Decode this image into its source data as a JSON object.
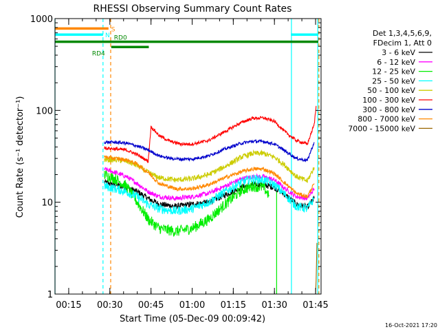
{
  "chart_data": {
    "type": "line",
    "title": "RHESSI Observing Summary Count Rates",
    "xlabel": "Start Time (05-Dec-09 00:09:42)",
    "ylabel": "Count Rate (s⁻¹ detector⁻¹)",
    "ylog": true,
    "ylim": [
      1,
      1000
    ],
    "xlim_minutes": [
      10,
      107
    ],
    "y_ticks": [
      {
        "value": 1,
        "label": "1"
      },
      {
        "value": 10,
        "label": "10"
      },
      {
        "value": 100,
        "label": "100"
      },
      {
        "value": 1000,
        "label": "1000"
      }
    ],
    "x_ticks": [
      {
        "minutes": 15,
        "label": "00:15"
      },
      {
        "minutes": 30,
        "label": "00:30"
      },
      {
        "minutes": 45,
        "label": "00:45"
      },
      {
        "minutes": 60,
        "label": "01:00"
      },
      {
        "minutes": 75,
        "label": "01:15"
      },
      {
        "minutes": 90,
        "label": "01:30"
      },
      {
        "minutes": 105,
        "label": "01:45"
      }
    ],
    "legend_header": [
      "Det 1,3,4,5,6,9,",
      "FDecim 1, Att 0"
    ],
    "legend_position": "right",
    "timestamp": "16-Oct-2021 17:20",
    "series": [
      {
        "name": "3 - 6 keV",
        "color": "#000000",
        "noise": 1.08,
        "points": [
          [
            28,
            16.5
          ],
          [
            32,
            15.5
          ],
          [
            36,
            14.5
          ],
          [
            40,
            13
          ],
          [
            44,
            11
          ],
          [
            48,
            9.5
          ],
          [
            54,
            9.0
          ],
          [
            60,
            9.5
          ],
          [
            66,
            10
          ],
          [
            72,
            12
          ],
          [
            78,
            14.5
          ],
          [
            82,
            15.5
          ],
          [
            86,
            15.5
          ],
          [
            90,
            14.5
          ],
          [
            94,
            12
          ],
          [
            98,
            9.5
          ],
          [
            102,
            8.8
          ],
          [
            104.5,
            11
          ]
        ]
      },
      {
        "name": "6 - 12 keV",
        "color": "#ff00ff",
        "noise": 1.06,
        "points": [
          [
            28,
            23
          ],
          [
            32,
            21
          ],
          [
            36,
            19
          ],
          [
            40,
            16
          ],
          [
            44,
            13
          ],
          [
            48,
            11.5
          ],
          [
            54,
            11
          ],
          [
            60,
            11.5
          ],
          [
            66,
            12.5
          ],
          [
            72,
            15
          ],
          [
            78,
            18
          ],
          [
            82,
            19
          ],
          [
            86,
            19
          ],
          [
            90,
            17.5
          ],
          [
            94,
            14
          ],
          [
            98,
            11.5
          ],
          [
            102,
            11
          ],
          [
            104.5,
            14
          ]
        ]
      },
      {
        "name": "12 - 25 keV",
        "color": "#00ee00",
        "noise": 1.15,
        "points": [
          [
            28,
            20
          ],
          [
            32,
            18
          ],
          [
            36,
            15
          ],
          [
            40,
            10
          ],
          [
            44,
            6.5
          ],
          [
            48,
            5.2
          ],
          [
            54,
            4.8
          ],
          [
            60,
            5.2
          ],
          [
            66,
            6.5
          ],
          [
            72,
            9.5
          ],
          [
            78,
            13.5
          ],
          [
            82,
            15
          ],
          [
            86,
            14.5
          ],
          [
            88,
            12
          ]
        ]
      },
      {
        "name": "25 - 50 keV",
        "color": "#00ffff",
        "noise": 1.12,
        "points": [
          [
            28,
            15
          ],
          [
            32,
            14
          ],
          [
            36,
            13
          ],
          [
            40,
            11.5
          ],
          [
            44,
            9.5
          ],
          [
            48,
            8.5
          ],
          [
            54,
            8
          ],
          [
            60,
            8.5
          ],
          [
            66,
            10
          ],
          [
            72,
            13
          ],
          [
            78,
            16.5
          ],
          [
            82,
            18
          ],
          [
            86,
            17.5
          ],
          [
            90,
            15.5
          ],
          [
            94,
            12
          ],
          [
            98,
            9
          ],
          [
            102,
            8.5
          ],
          [
            104.5,
            11
          ]
        ]
      },
      {
        "name": "50 - 100 keV",
        "color": "#cccc00",
        "noise": 1.07,
        "points": [
          [
            28,
            29
          ],
          [
            32,
            29
          ],
          [
            36,
            28
          ],
          [
            40,
            25
          ],
          [
            44,
            21
          ],
          [
            48,
            18.5
          ],
          [
            54,
            17.5
          ],
          [
            60,
            18
          ],
          [
            66,
            20
          ],
          [
            72,
            24.5
          ],
          [
            78,
            31
          ],
          [
            82,
            34
          ],
          [
            86,
            34
          ],
          [
            90,
            31
          ],
          [
            94,
            25
          ],
          [
            98,
            19
          ],
          [
            102,
            17
          ],
          [
            104.5,
            24
          ]
        ]
      },
      {
        "name": "100 - 300 keV",
        "color": "#ff0000",
        "noise": 1.04,
        "points": [
          [
            28,
            39
          ],
          [
            32,
            38
          ],
          [
            36,
            37
          ],
          [
            40,
            33
          ],
          [
            44,
            28
          ],
          [
            45,
            66
          ],
          [
            46,
            62
          ],
          [
            48,
            53
          ],
          [
            52,
            46
          ],
          [
            56,
            43
          ],
          [
            60,
            43
          ],
          [
            66,
            47
          ],
          [
            72,
            59
          ],
          [
            78,
            74
          ],
          [
            82,
            82
          ],
          [
            86,
            83
          ],
          [
            90,
            76
          ],
          [
            94,
            58
          ],
          [
            98,
            47
          ],
          [
            102,
            43
          ],
          [
            104.5,
            70
          ],
          [
            105.2,
            112
          ]
        ]
      },
      {
        "name": "300 - 800 keV",
        "color": "#0000cc",
        "noise": 1.04,
        "points": [
          [
            28,
            45
          ],
          [
            32,
            45
          ],
          [
            36,
            44
          ],
          [
            40,
            41
          ],
          [
            44,
            37
          ],
          [
            48,
            32
          ],
          [
            52,
            30
          ],
          [
            56,
            29.5
          ],
          [
            60,
            29.5
          ],
          [
            66,
            32
          ],
          [
            72,
            38
          ],
          [
            78,
            44
          ],
          [
            82,
            46
          ],
          [
            86,
            46
          ],
          [
            90,
            43
          ],
          [
            94,
            36
          ],
          [
            98,
            30
          ],
          [
            102,
            28.5
          ],
          [
            104.5,
            45
          ]
        ]
      },
      {
        "name": "800 - 7000 keV",
        "color": "#ff8800",
        "noise": 1.05,
        "points": [
          [
            28,
            31
          ],
          [
            32,
            30
          ],
          [
            36,
            29
          ],
          [
            40,
            26
          ],
          [
            44,
            21
          ],
          [
            48,
            16
          ],
          [
            54,
            14
          ],
          [
            60,
            14
          ],
          [
            66,
            15.5
          ],
          [
            72,
            18.5
          ],
          [
            78,
            21.5
          ],
          [
            82,
            23
          ],
          [
            86,
            23
          ],
          [
            90,
            20.5
          ],
          [
            94,
            16
          ],
          [
            98,
            12.5
          ],
          [
            102,
            11.5
          ],
          [
            104.5,
            16
          ]
        ]
      },
      {
        "name": "7000 - 15000 keV",
        "color": "#996600",
        "noise": 1.0,
        "points": [
          [
            105,
            1.0
          ],
          [
            105.2,
            1.4
          ],
          [
            105.4,
            2.6
          ],
          [
            105.5,
            3.6
          ]
        ]
      }
    ],
    "flag_bars": [
      {
        "label": "S",
        "color": "#ff8800",
        "value": 780,
        "from": 10,
        "to": 29.5,
        "label_at": 30.5
      },
      {
        "label": "N",
        "color": "#00ffff",
        "value": 670,
        "from": 10,
        "to": 27.5,
        "label_at": 28.3
      },
      {
        "label": "N",
        "color": "#00ffff",
        "value": 670,
        "from": 96,
        "to": 106
      },
      {
        "label": "RD0",
        "color": "#008800",
        "value": 560,
        "from": 10,
        "to": 106,
        "label_at": 31.5
      },
      {
        "label": "RD4",
        "color": "#008800",
        "value": 490,
        "from": 30.5,
        "to": 44.2,
        "label_at": 23.5
      }
    ],
    "vertical_markers": [
      {
        "minutes": 10,
        "color": "#00ffff",
        "style": "solid"
      },
      {
        "minutes": 27.5,
        "color": "#00ffff",
        "style": "dashed"
      },
      {
        "minutes": 30.3,
        "color": "#ff8800",
        "style": "dashed"
      },
      {
        "minutes": 96.2,
        "color": "#00ffff",
        "style": "solid"
      },
      {
        "minutes": 105.8,
        "color": "#00ffff",
        "style": "solid"
      },
      {
        "minutes": 106.2,
        "color": "#ff8800",
        "style": "dashed"
      },
      {
        "minutes": 90.8,
        "color": "#00ee00",
        "style": "solid",
        "ymax": 14
      }
    ]
  }
}
